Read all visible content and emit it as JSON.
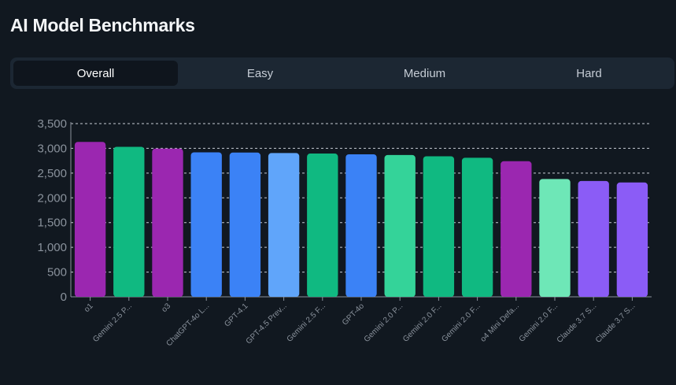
{
  "page": {
    "title": "AI Model Benchmarks"
  },
  "tabs": [
    {
      "label": "Overall",
      "active": true
    },
    {
      "label": "Easy",
      "active": false
    },
    {
      "label": "Medium",
      "active": false
    },
    {
      "label": "Hard",
      "active": false
    }
  ],
  "chart_data": {
    "type": "bar",
    "categories": [
      "o1",
      "Gemini 2.5 P...",
      "o3",
      "ChatGPT-4o L...",
      "GPT-4.1",
      "GPT-4.5 Prev...",
      "Gemini 2.5 F...",
      "GPT-4o",
      "Gemini 2.0 P...",
      "Gemini 2.0 F...",
      "Gemini 2.0 F...",
      "o4 Mini Defa...",
      "Gemini 2.0 F...",
      "Claude 3.7 S...",
      "Claude 3.7 S..."
    ],
    "values": [
      3130,
      3030,
      2995,
      2920,
      2915,
      2905,
      2895,
      2880,
      2865,
      2840,
      2810,
      2740,
      2380,
      2340,
      2310
    ],
    "colors": [
      "#9b27b0",
      "#10b981",
      "#9b27b0",
      "#3b82f6",
      "#3b82f6",
      "#60a5fa",
      "#10b981",
      "#3b82f6",
      "#34d399",
      "#10b981",
      "#10b981",
      "#9b27b0",
      "#6ee7b7",
      "#8b5cf6",
      "#8b5cf6"
    ],
    "yticks": [
      "0",
      "500",
      "1,000",
      "1,500",
      "2,000",
      "2,500",
      "3,000",
      "3,500"
    ],
    "ylim": [
      0,
      3500
    ],
    "grid": true,
    "title": "",
    "xlabel": "",
    "ylabel": ""
  }
}
